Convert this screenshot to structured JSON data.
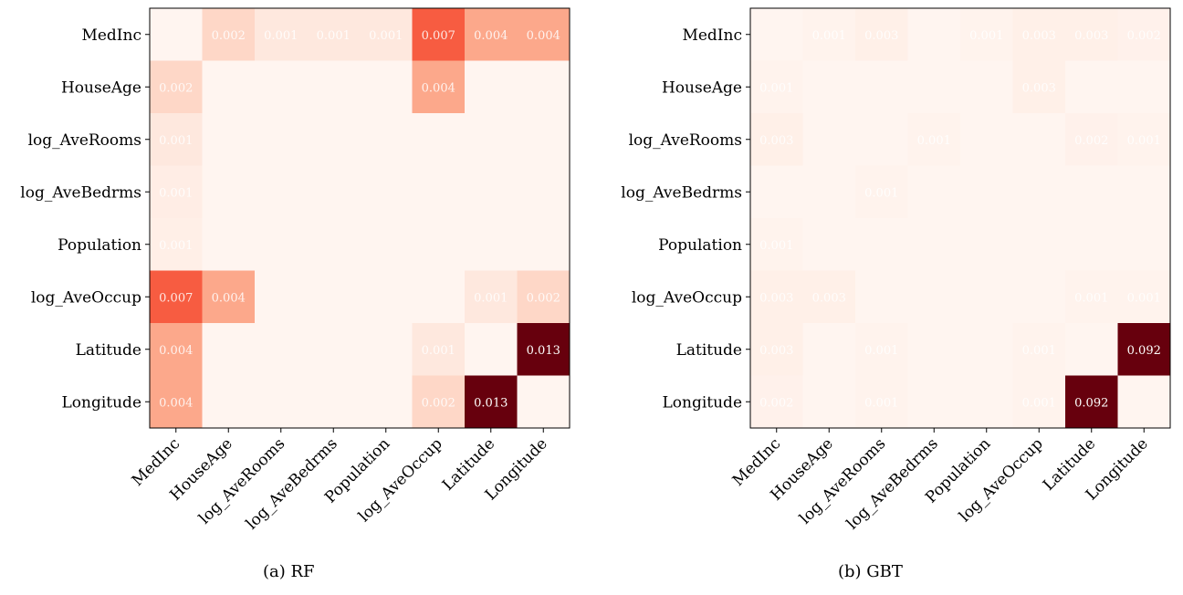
{
  "chart_data": [
    {
      "type": "heatmap",
      "caption": "(a) RF",
      "labels": [
        "MedInc",
        "HouseAge",
        "log_AveRooms",
        "log_AveBedrms",
        "Population",
        "log_AveOccup",
        "Latitude",
        "Longitude"
      ],
      "vmax": 0.013,
      "colormap": "Reds",
      "values": [
        [
          0.0,
          0.002,
          0.001,
          0.001,
          0.001,
          0.007,
          0.004,
          0.004
        ],
        [
          0.002,
          0.0,
          0.0,
          0.0,
          0.0,
          0.004,
          0.0,
          0.0
        ],
        [
          0.001,
          0.0,
          0.0,
          0.0,
          0.0,
          0.0,
          0.0,
          0.0
        ],
        [
          0.0006,
          0.0,
          0.0,
          0.0,
          0.0,
          0.0,
          0.0,
          0.0
        ],
        [
          0.0005,
          0.0,
          0.0,
          0.0,
          0.0,
          0.0,
          0.0,
          0.0
        ],
        [
          0.007,
          0.004,
          0.0,
          0.0,
          0.0,
          0.0,
          0.001,
          0.002
        ],
        [
          0.004,
          0.0,
          0.0,
          0.0,
          0.0,
          0.001,
          0.0,
          0.013
        ],
        [
          0.004,
          0.0,
          0.0,
          0.0,
          0.0,
          0.002,
          0.013,
          0.0
        ]
      ],
      "annotations": [
        [
          null,
          "0.002",
          "0.001",
          "0.001",
          "0.001",
          "0.007",
          "0.004",
          "0.004"
        ],
        [
          "0.002",
          null,
          null,
          null,
          null,
          "0.004",
          null,
          null
        ],
        [
          "0.001",
          null,
          null,
          null,
          null,
          null,
          null,
          null
        ],
        [
          "0.001",
          null,
          null,
          null,
          null,
          null,
          null,
          null
        ],
        [
          "0.001",
          null,
          null,
          null,
          null,
          null,
          null,
          null
        ],
        [
          "0.007",
          "0.004",
          null,
          null,
          null,
          null,
          "0.001",
          "0.002"
        ],
        [
          "0.004",
          null,
          null,
          null,
          null,
          "0.001",
          null,
          "0.013"
        ],
        [
          "0.004",
          null,
          null,
          null,
          null,
          "0.002",
          "0.013",
          null
        ]
      ]
    },
    {
      "type": "heatmap",
      "caption": "(b) GBT",
      "labels": [
        "MedInc",
        "HouseAge",
        "log_AveRooms",
        "log_AveBedrms",
        "Population",
        "log_AveOccup",
        "Latitude",
        "Longitude"
      ],
      "vmax": 0.092,
      "colormap": "Reds",
      "values": [
        [
          0.0,
          0.001,
          0.003,
          0.0,
          0.001,
          0.003,
          0.003,
          0.002
        ],
        [
          0.001,
          0.0,
          0.0,
          0.0,
          0.0,
          0.003,
          0.0,
          0.0
        ],
        [
          0.003,
          0.0,
          0.0,
          0.001,
          0.0,
          0.0,
          0.002,
          0.001
        ],
        [
          0.0,
          0.0,
          0.001,
          0.0,
          0.0,
          0.0,
          0.0,
          0.0
        ],
        [
          0.001,
          0.0,
          0.0,
          0.0,
          0.0,
          0.0,
          0.0,
          0.0
        ],
        [
          0.003,
          0.003,
          0.0,
          0.0,
          0.0,
          0.0,
          0.001,
          0.001
        ],
        [
          0.003,
          0.0,
          0.001,
          0.0,
          0.0,
          0.001,
          0.0,
          0.092
        ],
        [
          0.002,
          0.0,
          0.001,
          0.0,
          0.0,
          0.001,
          0.092,
          0.0
        ]
      ],
      "annotations": [
        [
          null,
          "0.001",
          "0.003",
          null,
          "0.001",
          "0.003",
          "0.003",
          "0.002"
        ],
        [
          "0.001",
          null,
          null,
          null,
          null,
          "0.003",
          null,
          null
        ],
        [
          "0.003",
          null,
          null,
          "0.001",
          null,
          null,
          "0.002",
          "0.001"
        ],
        [
          null,
          null,
          "0.001",
          null,
          null,
          null,
          null,
          null
        ],
        [
          "0.001",
          null,
          null,
          null,
          null,
          null,
          null,
          null
        ],
        [
          "0.003",
          "0.003",
          null,
          null,
          null,
          null,
          "0.001",
          "0.001"
        ],
        [
          "0.003",
          null,
          "0.001",
          null,
          null,
          "0.001",
          null,
          "0.092"
        ],
        [
          "0.002",
          null,
          "0.001",
          null,
          null,
          "0.001",
          "0.092",
          null
        ]
      ]
    }
  ]
}
